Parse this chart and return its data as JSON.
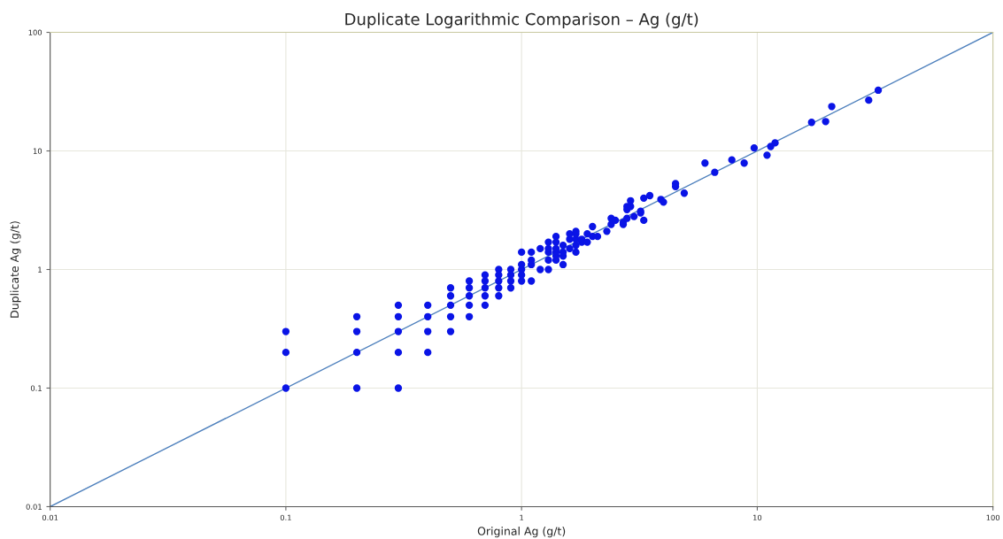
{
  "chart_data": {
    "type": "scatter",
    "title": "Duplicate Logarithmic Comparison – Ag (g/t)",
    "xlabel": "Original Ag (g/t)",
    "ylabel": "Duplicate Ag (g/t)",
    "log": "xy",
    "grid": true,
    "xlim": [
      0.01,
      100
    ],
    "ylim": [
      0.01,
      100
    ],
    "xticks": [
      0.01,
      0.1,
      1,
      10,
      100
    ],
    "yticks": [
      0.01,
      0.1,
      1,
      10,
      100
    ],
    "series": [
      {
        "marker": "circle",
        "color": "#0a14e6",
        "x": [
          0.1,
          0.1,
          0.1,
          0.2,
          0.2,
          0.2,
          0.2,
          0.3,
          0.3,
          0.3,
          0.3,
          0.3,
          0.4,
          0.4,
          0.4,
          0.4,
          0.5,
          0.5,
          0.5,
          0.5,
          0.5,
          0.6,
          0.6,
          0.6,
          0.6,
          0.6,
          0.7,
          0.7,
          0.7,
          0.7,
          0.7,
          0.8,
          0.8,
          0.8,
          0.8,
          0.8,
          0.9,
          0.9,
          0.9,
          0.9,
          1.0,
          1.0,
          1.0,
          1.0,
          1.0,
          1.1,
          1.1,
          1.1,
          1.1,
          1.2,
          1.2,
          1.3,
          1.3,
          1.3,
          1.3,
          1.3,
          1.4,
          1.4,
          1.4,
          1.4,
          1.4,
          1.4,
          1.5,
          1.5,
          1.5,
          1.5,
          1.6,
          1.6,
          1.6,
          1.7,
          1.7,
          1.7,
          1.7,
          1.7,
          1.8,
          1.8,
          1.9,
          1.9,
          2.0,
          2.0,
          2.1,
          2.3,
          2.4,
          2.4,
          2.5,
          2.7,
          2.7,
          2.8,
          2.8,
          2.8,
          2.9,
          2.9,
          3.0,
          3.2,
          3.2,
          3.3,
          3.3,
          3.5,
          3.9,
          4.0,
          4.5,
          4.5,
          4.9,
          6.0,
          6.6,
          7.8,
          8.8,
          9.7,
          11.0,
          11.4,
          11.9,
          17.0,
          19.5,
          20.7,
          29.7,
          32.6
        ],
        "values": [
          0.1,
          0.2,
          0.3,
          0.1,
          0.2,
          0.3,
          0.4,
          0.1,
          0.2,
          0.3,
          0.4,
          0.5,
          0.2,
          0.3,
          0.4,
          0.5,
          0.3,
          0.4,
          0.5,
          0.6,
          0.7,
          0.4,
          0.5,
          0.6,
          0.7,
          0.8,
          0.5,
          0.6,
          0.7,
          0.8,
          0.9,
          0.6,
          0.7,
          0.8,
          0.9,
          1.0,
          0.7,
          0.8,
          0.9,
          1.0,
          0.8,
          0.9,
          1.0,
          1.1,
          1.4,
          0.8,
          1.1,
          1.2,
          1.4,
          1.0,
          1.5,
          1.0,
          1.2,
          1.4,
          1.5,
          1.7,
          1.2,
          1.3,
          1.4,
          1.5,
          1.7,
          1.9,
          1.1,
          1.3,
          1.4,
          1.6,
          1.5,
          1.8,
          2.0,
          1.4,
          1.6,
          1.8,
          2.0,
          2.1,
          1.7,
          1.8,
          1.7,
          2.0,
          1.9,
          2.3,
          1.9,
          2.1,
          2.4,
          2.7,
          2.6,
          2.4,
          2.5,
          2.7,
          3.2,
          3.4,
          3.4,
          3.8,
          2.8,
          3.0,
          3.1,
          2.6,
          4.0,
          4.2,
          3.9,
          3.7,
          5.0,
          5.3,
          4.4,
          7.9,
          6.6,
          8.4,
          7.9,
          10.6,
          9.2,
          10.9,
          11.7,
          17.4,
          17.7,
          23.7,
          26.8,
          32.5
        ]
      },
      {
        "type": "line",
        "marker": "none",
        "color": "#4f81bd",
        "x": [
          0.01,
          100
        ],
        "values": [
          0.01,
          100
        ]
      }
    ]
  }
}
